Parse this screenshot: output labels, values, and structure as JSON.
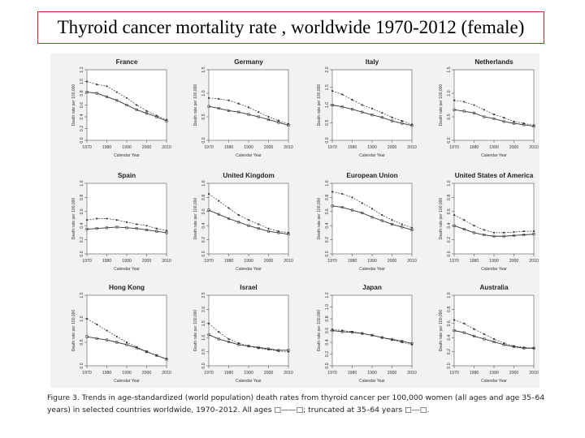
{
  "slide_title": "Thyroid cancer mortality rate , worldwide 1970-2012 (female)",
  "caption": {
    "line1": "Figure 3. Trends in age-standardized (world population) death rates from thyroid cancer per 100,000 women (all ages and age 35–64",
    "line2": "years) in selected countries worldwide, 1970–2012. All ages □——□; truncated at 35–64 years □---□."
  },
  "colors": {
    "title_border": "#c8322a",
    "figure_bg": "#f2f2f2",
    "ink": "#333333"
  },
  "chart_data": [
    {
      "type": "scatter",
      "title": "France",
      "xlabel": "Calendar Year",
      "ylabel": "Death rate per 100,000",
      "xlim": [
        1970,
        2010
      ],
      "xticks": [
        1970,
        1980,
        1990,
        2000,
        2010
      ],
      "ylim": [
        0,
        1.2
      ],
      "yticks": [
        0,
        0.2,
        0.4,
        0.6,
        0.8,
        1.0,
        1.2
      ],
      "series": [
        {
          "name": "All ages",
          "x": [
            1970,
            1975,
            1980,
            1985,
            1990,
            1995,
            2000,
            2005,
            2010
          ],
          "values": [
            0.82,
            0.8,
            0.74,
            0.68,
            0.6,
            0.52,
            0.46,
            0.4,
            0.33
          ]
        },
        {
          "name": "35-64 years",
          "x": [
            1970,
            1975,
            1980,
            1985,
            1990,
            1995,
            2000,
            2005,
            2010
          ],
          "values": [
            1.0,
            0.95,
            0.92,
            0.82,
            0.72,
            0.6,
            0.5,
            0.42,
            0.35
          ]
        }
      ]
    },
    {
      "type": "scatter",
      "title": "Germany",
      "xlabel": "Calendar Year",
      "ylabel": "Death rate per 100,000",
      "xlim": [
        1970,
        2010
      ],
      "xticks": [
        1970,
        1980,
        1990,
        2000,
        2010
      ],
      "ylim": [
        0,
        1.5
      ],
      "yticks": [
        0,
        0.5,
        1.0,
        1.5
      ],
      "series": [
        {
          "name": "All ages",
          "x": [
            1970,
            1975,
            1980,
            1985,
            1990,
            1995,
            2000,
            2005,
            2010
          ],
          "values": [
            0.72,
            0.68,
            0.63,
            0.6,
            0.55,
            0.5,
            0.44,
            0.38,
            0.32
          ]
        },
        {
          "name": "35-64 years",
          "x": [
            1970,
            1975,
            1980,
            1985,
            1990,
            1995,
            2000,
            2005,
            2010
          ],
          "values": [
            0.9,
            0.88,
            0.85,
            0.78,
            0.7,
            0.6,
            0.5,
            0.42,
            0.35
          ]
        }
      ]
    },
    {
      "type": "scatter",
      "title": "Italy",
      "xlabel": "Calendar Year",
      "ylabel": "Death rate per 100,000",
      "xlim": [
        1970,
        2010
      ],
      "xticks": [
        1970,
        1980,
        1990,
        2000,
        2010
      ],
      "ylim": [
        0,
        2.0
      ],
      "yticks": [
        0,
        0.5,
        1.0,
        1.5,
        2.0
      ],
      "series": [
        {
          "name": "All ages",
          "x": [
            1970,
            1975,
            1980,
            1985,
            1990,
            1995,
            2000,
            2005,
            2010
          ],
          "values": [
            1.0,
            0.95,
            0.88,
            0.8,
            0.72,
            0.65,
            0.55,
            0.48,
            0.42
          ]
        },
        {
          "name": "35-64 years",
          "x": [
            1970,
            1975,
            1980,
            1985,
            1990,
            1995,
            2000,
            2005,
            2010
          ],
          "values": [
            1.4,
            1.3,
            1.15,
            1.0,
            0.9,
            0.78,
            0.65,
            0.55,
            0.45
          ]
        }
      ]
    },
    {
      "type": "scatter",
      "title": "Netherlands",
      "xlabel": "Calendar Year",
      "ylabel": "Death rate per 100,000",
      "xlim": [
        1970,
        2010
      ],
      "xticks": [
        1970,
        1980,
        1990,
        2000,
        2010
      ],
      "ylim": [
        0,
        1.5
      ],
      "yticks": [
        0,
        0.5,
        1.0,
        1.5
      ],
      "series": [
        {
          "name": "All ages",
          "x": [
            1970,
            1975,
            1980,
            1985,
            1990,
            1995,
            2000,
            2005,
            2010
          ],
          "values": [
            0.65,
            0.62,
            0.58,
            0.5,
            0.46,
            0.4,
            0.36,
            0.33,
            0.3
          ]
        },
        {
          "name": "35-64 years",
          "x": [
            1970,
            1975,
            1980,
            1985,
            1990,
            1995,
            2000,
            2005,
            2010
          ],
          "values": [
            0.85,
            0.82,
            0.75,
            0.65,
            0.55,
            0.48,
            0.4,
            0.36,
            0.32
          ]
        }
      ]
    },
    {
      "type": "scatter",
      "title": "Spain",
      "xlabel": "Calendar Year",
      "ylabel": "Death rate per 100,000",
      "xlim": [
        1970,
        2010
      ],
      "xticks": [
        1970,
        1980,
        1990,
        2000,
        2010
      ],
      "ylim": [
        0,
        1.0
      ],
      "yticks": [
        0,
        0.2,
        0.4,
        0.6,
        0.8,
        1.0
      ],
      "series": [
        {
          "name": "All ages",
          "x": [
            1970,
            1975,
            1980,
            1985,
            1990,
            1995,
            2000,
            2005,
            2010
          ],
          "values": [
            0.35,
            0.36,
            0.37,
            0.38,
            0.37,
            0.36,
            0.34,
            0.32,
            0.3
          ]
        },
        {
          "name": "35-64 years",
          "x": [
            1970,
            1975,
            1980,
            1985,
            1990,
            1995,
            2000,
            2005,
            2010
          ],
          "values": [
            0.48,
            0.5,
            0.5,
            0.48,
            0.45,
            0.42,
            0.4,
            0.36,
            0.33
          ]
        }
      ]
    },
    {
      "type": "scatter",
      "title": "United Kingdom",
      "xlabel": "Calendar Year",
      "ylabel": "Death rate per 100,000",
      "xlim": [
        1970,
        2010
      ],
      "xticks": [
        1970,
        1980,
        1990,
        2000,
        2010
      ],
      "ylim": [
        0,
        1.0
      ],
      "yticks": [
        0,
        0.2,
        0.4,
        0.6,
        0.8,
        1.0
      ],
      "series": [
        {
          "name": "All ages",
          "x": [
            1970,
            1975,
            1980,
            1985,
            1990,
            1995,
            2000,
            2005,
            2010
          ],
          "values": [
            0.62,
            0.56,
            0.5,
            0.45,
            0.4,
            0.36,
            0.32,
            0.3,
            0.28
          ]
        },
        {
          "name": "35-64 years",
          "x": [
            1970,
            1975,
            1980,
            1985,
            1990,
            1995,
            2000,
            2005,
            2010
          ],
          "values": [
            0.85,
            0.75,
            0.65,
            0.55,
            0.48,
            0.42,
            0.36,
            0.32,
            0.3
          ]
        }
      ]
    },
    {
      "type": "scatter",
      "title": "European Union",
      "xlabel": "Calendar Year",
      "ylabel": "Death rate per 100,000",
      "xlim": [
        1970,
        2010
      ],
      "xticks": [
        1970,
        1980,
        1990,
        2000,
        2010
      ],
      "ylim": [
        0,
        1.0
      ],
      "yticks": [
        0,
        0.2,
        0.4,
        0.6,
        0.8,
        1.0
      ],
      "series": [
        {
          "name": "All ages",
          "x": [
            1970,
            1975,
            1980,
            1985,
            1990,
            1995,
            2000,
            2005,
            2010
          ],
          "values": [
            0.68,
            0.66,
            0.62,
            0.58,
            0.52,
            0.47,
            0.42,
            0.38,
            0.34
          ]
        },
        {
          "name": "35-64 years",
          "x": [
            1970,
            1975,
            1980,
            1985,
            1990,
            1995,
            2000,
            2005,
            2010
          ],
          "values": [
            0.88,
            0.85,
            0.8,
            0.72,
            0.64,
            0.55,
            0.48,
            0.42,
            0.37
          ]
        }
      ]
    },
    {
      "type": "scatter",
      "title": "United States of America",
      "xlabel": "Calendar Year",
      "ylabel": "Death rate per 100,000",
      "xlim": [
        1970,
        2010
      ],
      "xticks": [
        1970,
        1980,
        1990,
        2000,
        2010
      ],
      "ylim": [
        0,
        1.0
      ],
      "yticks": [
        0,
        0.2,
        0.4,
        0.6,
        0.8,
        1.0
      ],
      "series": [
        {
          "name": "All ages",
          "x": [
            1970,
            1975,
            1980,
            1985,
            1990,
            1995,
            2000,
            2005,
            2010
          ],
          "values": [
            0.4,
            0.35,
            0.3,
            0.27,
            0.25,
            0.25,
            0.26,
            0.27,
            0.28
          ]
        },
        {
          "name": "35-64 years",
          "x": [
            1970,
            1975,
            1980,
            1985,
            1990,
            1995,
            2000,
            2005,
            2010
          ],
          "values": [
            0.55,
            0.48,
            0.4,
            0.34,
            0.3,
            0.3,
            0.31,
            0.32,
            0.32
          ]
        }
      ]
    },
    {
      "type": "scatter",
      "title": "Hong Kong",
      "xlabel": "Calendar Year",
      "ylabel": "Death rate per 100,000",
      "xlim": [
        1970,
        2010
      ],
      "xticks": [
        1970,
        1980,
        1990,
        2000,
        2010
      ],
      "ylim": [
        0,
        1.5
      ],
      "yticks": [
        0,
        0.5,
        1.0,
        1.5
      ],
      "series": [
        {
          "name": "All ages",
          "x": [
            1970,
            1975,
            1980,
            1985,
            1990,
            1995,
            2000,
            2005,
            2010
          ],
          "values": [
            0.62,
            0.58,
            0.55,
            0.5,
            0.45,
            0.38,
            0.3,
            0.22,
            0.14
          ]
        },
        {
          "name": "35-64 years",
          "x": [
            1970,
            1975,
            1980,
            1985,
            1990,
            1995,
            2000,
            2005,
            2010
          ],
          "values": [
            1.0,
            0.88,
            0.75,
            0.62,
            0.5,
            0.4,
            0.3,
            0.22,
            0.15
          ]
        }
      ]
    },
    {
      "type": "scatter",
      "title": "Israel",
      "xlabel": "Calendar Year",
      "ylabel": "Death rate per 100,000",
      "xlim": [
        1970,
        2010
      ],
      "xticks": [
        1970,
        1980,
        1990,
        2000,
        2010
      ],
      "ylim": [
        0,
        2.5
      ],
      "yticks": [
        0,
        0.5,
        1.0,
        1.5,
        2.0,
        2.5
      ],
      "series": [
        {
          "name": "All ages",
          "x": [
            1970,
            1975,
            1980,
            1985,
            1990,
            1995,
            2000,
            2005,
            2010
          ],
          "values": [
            1.1,
            0.95,
            0.85,
            0.75,
            0.7,
            0.65,
            0.6,
            0.55,
            0.55
          ]
        },
        {
          "name": "35-64 years",
          "x": [
            1970,
            1975,
            1980,
            1985,
            1990,
            1995,
            2000,
            2005,
            2010
          ],
          "values": [
            1.5,
            1.2,
            0.95,
            0.8,
            0.7,
            0.62,
            0.58,
            0.52,
            0.5
          ]
        }
      ]
    },
    {
      "type": "scatter",
      "title": "Japan",
      "xlabel": "Calendar Year",
      "ylabel": "Death rate per 100,000",
      "xlim": [
        1970,
        2010
      ],
      "xticks": [
        1970,
        1980,
        1990,
        2000,
        2010
      ],
      "ylim": [
        0,
        1.2
      ],
      "yticks": [
        0,
        0.2,
        0.4,
        0.6,
        0.8,
        1.0,
        1.2
      ],
      "series": [
        {
          "name": "All ages",
          "x": [
            1970,
            1975,
            1980,
            1985,
            1990,
            1995,
            2000,
            2005,
            2010
          ],
          "values": [
            0.6,
            0.58,
            0.57,
            0.55,
            0.52,
            0.48,
            0.45,
            0.42,
            0.38
          ]
        },
        {
          "name": "35-64 years",
          "x": [
            1970,
            1975,
            1980,
            1985,
            1990,
            1995,
            2000,
            2005,
            2010
          ],
          "values": [
            0.62,
            0.6,
            0.58,
            0.55,
            0.52,
            0.48,
            0.44,
            0.4,
            0.36
          ]
        }
      ]
    },
    {
      "type": "scatter",
      "title": "Australia",
      "xlabel": "Calendar Year",
      "ylabel": "Death rate per 100,000",
      "xlim": [
        1970,
        2010
      ],
      "xticks": [
        1970,
        1980,
        1990,
        2000,
        2010
      ],
      "ylim": [
        0,
        1.0
      ],
      "yticks": [
        0,
        0.2,
        0.4,
        0.6,
        0.8,
        1.0
      ],
      "series": [
        {
          "name": "All ages",
          "x": [
            1970,
            1975,
            1980,
            1985,
            1990,
            1995,
            2000,
            2005,
            2010
          ],
          "values": [
            0.5,
            0.47,
            0.42,
            0.38,
            0.34,
            0.3,
            0.27,
            0.25,
            0.25
          ]
        },
        {
          "name": "35-64 years",
          "x": [
            1970,
            1975,
            1980,
            1985,
            1990,
            1995,
            2000,
            2005,
            2010
          ],
          "values": [
            0.65,
            0.6,
            0.52,
            0.45,
            0.38,
            0.32,
            0.28,
            0.26,
            0.25
          ]
        }
      ]
    }
  ]
}
